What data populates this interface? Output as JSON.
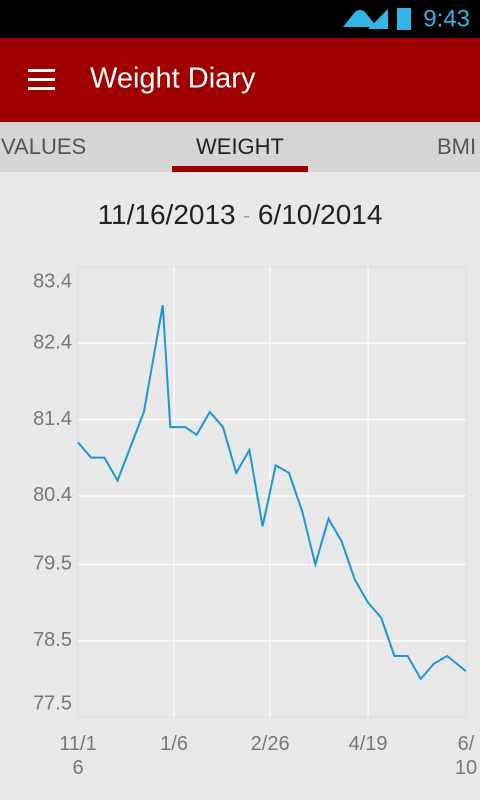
{
  "status_bar": {
    "time": "9:43"
  },
  "app_bar": {
    "title": "Weight Diary"
  },
  "tabs": [
    "VALUES",
    "WEIGHT",
    "BMI"
  ],
  "date_range": {
    "start": "11/16/2013",
    "separator": "-",
    "end": "6/10/2014"
  },
  "chart_data": {
    "type": "line",
    "x": [
      "11/16",
      "11/23",
      "11/30",
      "12/7",
      "12/21",
      "12/31",
      "1/4",
      "1/12",
      "1/18",
      "1/25",
      "2/1",
      "2/8",
      "2/15",
      "2/22",
      "3/1",
      "3/8",
      "3/15",
      "3/22",
      "3/29",
      "4/5",
      "4/12",
      "4/19",
      "4/26",
      "5/3",
      "5/10",
      "5/17",
      "5/24",
      "5/31",
      "6/10"
    ],
    "values": [
      81.1,
      80.9,
      80.9,
      80.6,
      81.5,
      82.9,
      81.3,
      81.3,
      81.2,
      81.5,
      81.3,
      80.7,
      81.0,
      80.0,
      80.8,
      80.7,
      80.2,
      79.5,
      80.1,
      79.8,
      79.3,
      79.0,
      78.8,
      78.3,
      78.3,
      78.0,
      78.2,
      78.3,
      78.1
    ],
    "color": "#1e96d2",
    "xlim": [
      "11/16",
      "6/10"
    ],
    "xticks": [
      "11/16",
      "1/6",
      "2/26",
      "4/19",
      "6/10"
    ],
    "ylim": [
      77.5,
      83.4
    ],
    "yticks": [
      77.5,
      78.5,
      79.5,
      80.4,
      81.4,
      82.4,
      83.4
    ],
    "grid": true
  }
}
